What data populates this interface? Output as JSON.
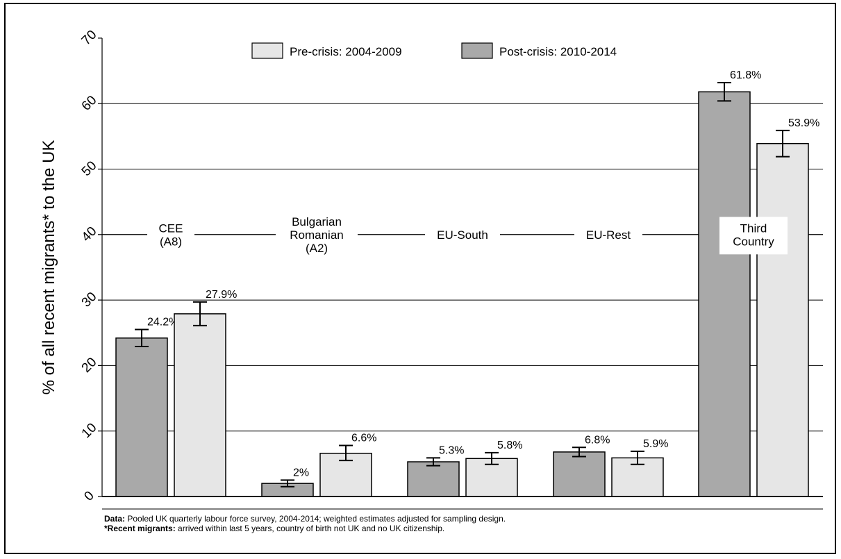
{
  "chart_data": {
    "type": "bar",
    "ylabel": "% of all recent migrants* to the UK",
    "ylim": [
      0,
      70
    ],
    "yticks": [
      0,
      10,
      20,
      30,
      40,
      50,
      60,
      70
    ],
    "grid": "horizontal",
    "legend_position": "top",
    "groups": [
      {
        "label_lines": [
          "CEE",
          "(A8)"
        ],
        "values": [
          24.2,
          27.9
        ],
        "ci": [
          [
            22.9,
            25.5
          ],
          [
            26.1,
            29.7
          ]
        ],
        "labels": [
          "24.2%",
          "27.9%"
        ]
      },
      {
        "label_lines": [
          "Bulgarian",
          "Romanian",
          "(A2)"
        ],
        "values": [
          2.0,
          6.6
        ],
        "ci": [
          [
            1.5,
            2.5
          ],
          [
            5.5,
            7.8
          ]
        ],
        "labels": [
          "2%",
          "6.6%"
        ]
      },
      {
        "label_lines": [
          "EU-South"
        ],
        "values": [
          5.3,
          5.8
        ],
        "ci": [
          [
            4.7,
            5.9
          ],
          [
            4.9,
            6.7
          ]
        ],
        "labels": [
          "5.3%",
          "5.8%"
        ]
      },
      {
        "label_lines": [
          "EU-Rest"
        ],
        "values": [
          6.8,
          5.9
        ],
        "ci": [
          [
            6.1,
            7.5
          ],
          [
            4.9,
            6.9
          ]
        ],
        "labels": [
          "6.8%",
          "5.9%"
        ]
      },
      {
        "label_lines": [
          "Third",
          "Country"
        ],
        "values": [
          61.8,
          53.9
        ],
        "ci": [
          [
            60.4,
            63.2
          ],
          [
            51.9,
            55.9
          ]
        ],
        "labels": [
          "61.8%",
          "53.9%"
        ]
      }
    ],
    "series": [
      {
        "legend": "Post-crisis: 2010-2014",
        "color": "#a9a9a9"
      },
      {
        "legend": "Pre-crisis: 2004-2009",
        "color": "#e6e6e6"
      }
    ],
    "legend_order": [
      1,
      0
    ],
    "category_label_y": 40
  },
  "notes": {
    "data_label": "Data:",
    "data_text": " Pooled UK quarterly labour force survey, 2004-2014; weighted estimates adjusted for sampling design.",
    "migrants_label": "*Recent migrants:",
    "migrants_text": " arrived within last 5 years, country of birth not UK and no UK citizenship."
  }
}
